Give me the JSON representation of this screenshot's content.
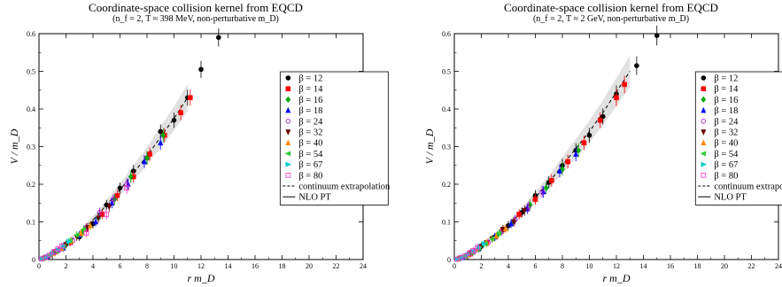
{
  "chart_data": [
    {
      "type": "scatter",
      "title": "Coordinate-space collision kernel from EQCD",
      "subtitle": "(n_f = 2, T ≈ 398 MeV, non-perturbative m_D)",
      "xlabel": "r m_D",
      "ylabel": "V / m_D",
      "xlim": [
        0,
        24
      ],
      "ylim": [
        0,
        0.6
      ],
      "x_ticks": [
        "0",
        "2",
        "4",
        "6",
        "8",
        "10",
        "12",
        "14",
        "16",
        "18",
        "20",
        "22",
        "24"
      ],
      "y_ticks": [
        "0",
        "0.1",
        "0.2",
        "0.3",
        "0.4",
        "0.5",
        "0.6"
      ],
      "legend_position": "right",
      "series": [
        {
          "name": "β = 12",
          "color": "#000000",
          "marker": "circle",
          "points": [
            [
              1.0,
              0.015
            ],
            [
              2.0,
              0.04
            ],
            [
              3.0,
              0.06
            ],
            [
              4.0,
              0.095
            ],
            [
              5.0,
              0.145
            ],
            [
              6.0,
              0.19
            ],
            [
              7.0,
              0.235
            ],
            [
              8.0,
              0.27
            ],
            [
              9.0,
              0.34
            ],
            [
              10.0,
              0.37
            ],
            [
              11.0,
              0.43
            ],
            [
              12.0,
              0.505
            ],
            [
              13.3,
              0.59
            ]
          ]
        },
        {
          "name": "β = 14",
          "color": "#ff0000",
          "marker": "square",
          "points": [
            [
              1.2,
              0.02
            ],
            [
              2.3,
              0.045
            ],
            [
              3.5,
              0.08
            ],
            [
              4.7,
              0.12
            ],
            [
              5.8,
              0.17
            ],
            [
              7.0,
              0.22
            ],
            [
              8.2,
              0.28
            ],
            [
              9.3,
              0.33
            ],
            [
              10.5,
              0.39
            ],
            [
              11.2,
              0.43
            ]
          ]
        },
        {
          "name": "β = 16",
          "color": "#00aa00",
          "marker": "diamond",
          "points": [
            [
              0.8,
              0.01
            ],
            [
              2.0,
              0.04
            ],
            [
              3.2,
              0.07
            ],
            [
              4.4,
              0.11
            ],
            [
              5.6,
              0.16
            ],
            [
              6.8,
              0.22
            ],
            [
              8.0,
              0.27
            ],
            [
              9.2,
              0.33
            ]
          ]
        },
        {
          "name": "β = 18",
          "color": "#0000ff",
          "marker": "triangle-up",
          "points": [
            [
              0.6,
              0.008
            ],
            [
              1.8,
              0.03
            ],
            [
              3.0,
              0.065
            ],
            [
              4.2,
              0.1
            ],
            [
              5.4,
              0.15
            ],
            [
              6.6,
              0.2
            ],
            [
              7.8,
              0.26
            ],
            [
              9.0,
              0.31
            ]
          ]
        },
        {
          "name": "β = 24",
          "color": "#aa00cc",
          "marker": "circle-open",
          "points": [
            [
              0.5,
              0.005
            ],
            [
              1.5,
              0.025
            ],
            [
              2.5,
              0.05
            ],
            [
              3.5,
              0.085
            ],
            [
              4.5,
              0.125
            ],
            [
              5.5,
              0.16
            ],
            [
              6.5,
              0.2
            ]
          ]
        },
        {
          "name": "β = 32",
          "color": "#660000",
          "marker": "triangle-down",
          "points": [
            [
              0.4,
              0.004
            ],
            [
              1.2,
              0.02
            ],
            [
              2.0,
              0.04
            ],
            [
              2.8,
              0.06
            ],
            [
              3.6,
              0.085
            ],
            [
              4.4,
              0.11
            ],
            [
              5.2,
              0.14
            ]
          ]
        },
        {
          "name": "β = 40",
          "color": "#ff8800",
          "marker": "triangle-up",
          "points": [
            [
              0.3,
              0.003
            ],
            [
              1.0,
              0.015
            ],
            [
              1.7,
              0.03
            ],
            [
              2.4,
              0.05
            ],
            [
              3.1,
              0.07
            ],
            [
              3.8,
              0.09
            ]
          ]
        },
        {
          "name": "β = 54",
          "color": "#33cc33",
          "marker": "triangle-left",
          "points": [
            [
              0.3,
              0.003
            ],
            [
              0.8,
              0.01
            ],
            [
              1.3,
              0.022
            ],
            [
              1.8,
              0.035
            ],
            [
              2.3,
              0.05
            ],
            [
              2.8,
              0.065
            ],
            [
              3.3,
              0.08
            ]
          ]
        },
        {
          "name": "β = 67",
          "color": "#00cccc",
          "marker": "triangle-right",
          "points": [
            [
              0.2,
              0.002
            ],
            [
              0.6,
              0.008
            ],
            [
              1.0,
              0.016
            ],
            [
              1.4,
              0.026
            ],
            [
              1.8,
              0.036
            ],
            [
              2.2,
              0.048
            ]
          ]
        },
        {
          "name": "β = 80",
          "color": "#ff33cc",
          "marker": "square-open",
          "points": [
            [
              0.2,
              0.002
            ],
            [
              0.5,
              0.006
            ],
            [
              0.8,
              0.012
            ],
            [
              1.1,
              0.02
            ],
            [
              1.4,
              0.028
            ],
            [
              1.7,
              0.036
            ],
            [
              3.5,
              0.07
            ],
            [
              5.0,
              0.12
            ],
            [
              6.5,
              0.19
            ]
          ]
        }
      ],
      "continuum": {
        "name": "continuum extrapolation",
        "style": "dashed",
        "x": [
          0,
          1,
          2,
          3,
          4,
          5,
          6,
          7,
          8,
          9,
          10,
          11
        ],
        "y": [
          0,
          0.015,
          0.04,
          0.07,
          0.105,
          0.145,
          0.185,
          0.23,
          0.275,
          0.325,
          0.375,
          0.43
        ]
      },
      "nlo": {
        "name": "NLO PT",
        "style": "solid"
      }
    },
    {
      "type": "scatter",
      "title": "Coordinate-space collision kernel from EQCD",
      "subtitle": "(n_f = 2, T ≈ 2 GeV, non-perturbative m_D)",
      "xlabel": "r m_D",
      "ylabel": "V / m_D",
      "xlim": [
        0,
        24
      ],
      "ylim": [
        0,
        0.6
      ],
      "x_ticks": [
        "0",
        "2",
        "4",
        "6",
        "8",
        "10",
        "12",
        "14",
        "16",
        "18",
        "20",
        "22",
        "24"
      ],
      "y_ticks": [
        "0",
        "0.1",
        "0.2",
        "0.3",
        "0.4",
        "0.5",
        "0.6"
      ],
      "legend_position": "right",
      "series": [
        {
          "name": "β = 12",
          "color": "#000000",
          "marker": "circle",
          "points": [
            [
              1.0,
              0.012
            ],
            [
              2.0,
              0.035
            ],
            [
              3.0,
              0.06
            ],
            [
              4.0,
              0.09
            ],
            [
              5.0,
              0.125
            ],
            [
              6.0,
              0.17
            ],
            [
              7.0,
              0.205
            ],
            [
              8.0,
              0.25
            ],
            [
              9.0,
              0.29
            ],
            [
              10.0,
              0.33
            ],
            [
              11.0,
              0.38
            ],
            [
              12.0,
              0.44
            ],
            [
              13.5,
              0.515
            ],
            [
              15.0,
              0.595
            ]
          ]
        },
        {
          "name": "β = 14",
          "color": "#ff0000",
          "marker": "square",
          "points": [
            [
              1.2,
              0.015
            ],
            [
              2.4,
              0.045
            ],
            [
              3.6,
              0.08
            ],
            [
              4.8,
              0.12
            ],
            [
              6.0,
              0.16
            ],
            [
              7.2,
              0.21
            ],
            [
              8.4,
              0.26
            ],
            [
              9.6,
              0.31
            ],
            [
              10.8,
              0.37
            ],
            [
              12.0,
              0.43
            ],
            [
              12.6,
              0.465
            ]
          ]
        },
        {
          "name": "β = 16",
          "color": "#00aa00",
          "marker": "diamond",
          "points": [
            [
              0.8,
              0.008
            ],
            [
              2.0,
              0.035
            ],
            [
              3.2,
              0.065
            ],
            [
              4.4,
              0.1
            ],
            [
              5.6,
              0.145
            ],
            [
              6.8,
              0.19
            ],
            [
              8.0,
              0.24
            ],
            [
              9.2,
              0.29
            ]
          ]
        },
        {
          "name": "β = 18",
          "color": "#0000ff",
          "marker": "triangle-up",
          "points": [
            [
              0.6,
              0.006
            ],
            [
              1.8,
              0.028
            ],
            [
              3.0,
              0.06
            ],
            [
              4.2,
              0.095
            ],
            [
              5.4,
              0.135
            ],
            [
              6.6,
              0.18
            ],
            [
              7.8,
              0.235
            ],
            [
              9.0,
              0.28
            ]
          ]
        },
        {
          "name": "β = 24",
          "color": "#aa00cc",
          "marker": "circle-open",
          "points": [
            [
              0.5,
              0.004
            ],
            [
              1.5,
              0.022
            ],
            [
              2.5,
              0.045
            ],
            [
              3.5,
              0.075
            ],
            [
              4.5,
              0.105
            ],
            [
              5.5,
              0.14
            ],
            [
              6.5,
              0.18
            ]
          ]
        },
        {
          "name": "β = 32",
          "color": "#660000",
          "marker": "triangle-down",
          "points": [
            [
              0.4,
              0.003
            ],
            [
              1.2,
              0.018
            ],
            [
              2.0,
              0.035
            ],
            [
              2.8,
              0.055
            ],
            [
              3.6,
              0.08
            ],
            [
              4.4,
              0.1
            ],
            [
              5.2,
              0.13
            ]
          ]
        },
        {
          "name": "β = 40",
          "color": "#ff8800",
          "marker": "triangle-up",
          "points": [
            [
              0.3,
              0.002
            ],
            [
              1.0,
              0.012
            ],
            [
              1.7,
              0.028
            ],
            [
              2.4,
              0.045
            ],
            [
              3.1,
              0.062
            ],
            [
              3.8,
              0.082
            ]
          ]
        },
        {
          "name": "β = 54",
          "color": "#33cc33",
          "marker": "triangle-left",
          "points": [
            [
              0.3,
              0.002
            ],
            [
              0.8,
              0.008
            ],
            [
              1.3,
              0.018
            ],
            [
              1.8,
              0.03
            ],
            [
              2.3,
              0.042
            ],
            [
              2.8,
              0.055
            ],
            [
              3.3,
              0.07
            ]
          ]
        },
        {
          "name": "β = 67",
          "color": "#00cccc",
          "marker": "triangle-right",
          "points": [
            [
              0.2,
              0.001
            ],
            [
              0.6,
              0.006
            ],
            [
              1.0,
              0.013
            ],
            [
              1.4,
              0.022
            ],
            [
              1.8,
              0.032
            ],
            [
              2.2,
              0.042
            ]
          ]
        },
        {
          "name": "β = 80",
          "color": "#ff33cc",
          "marker": "square-open",
          "points": [
            [
              0.2,
              0.001
            ],
            [
              0.5,
              0.005
            ],
            [
              0.8,
              0.01
            ],
            [
              1.1,
              0.017
            ],
            [
              1.4,
              0.024
            ],
            [
              1.7,
              0.032
            ]
          ]
        }
      ],
      "continuum": {
        "name": "continuum extrapolation",
        "style": "dashed",
        "x": [
          0,
          1,
          2,
          3,
          4,
          5,
          6,
          7,
          8,
          9,
          10,
          11,
          12,
          13
        ],
        "y": [
          0,
          0.012,
          0.035,
          0.062,
          0.092,
          0.127,
          0.165,
          0.205,
          0.25,
          0.295,
          0.34,
          0.39,
          0.445,
          0.5
        ]
      },
      "nlo": {
        "name": "NLO PT",
        "style": "solid"
      }
    }
  ]
}
